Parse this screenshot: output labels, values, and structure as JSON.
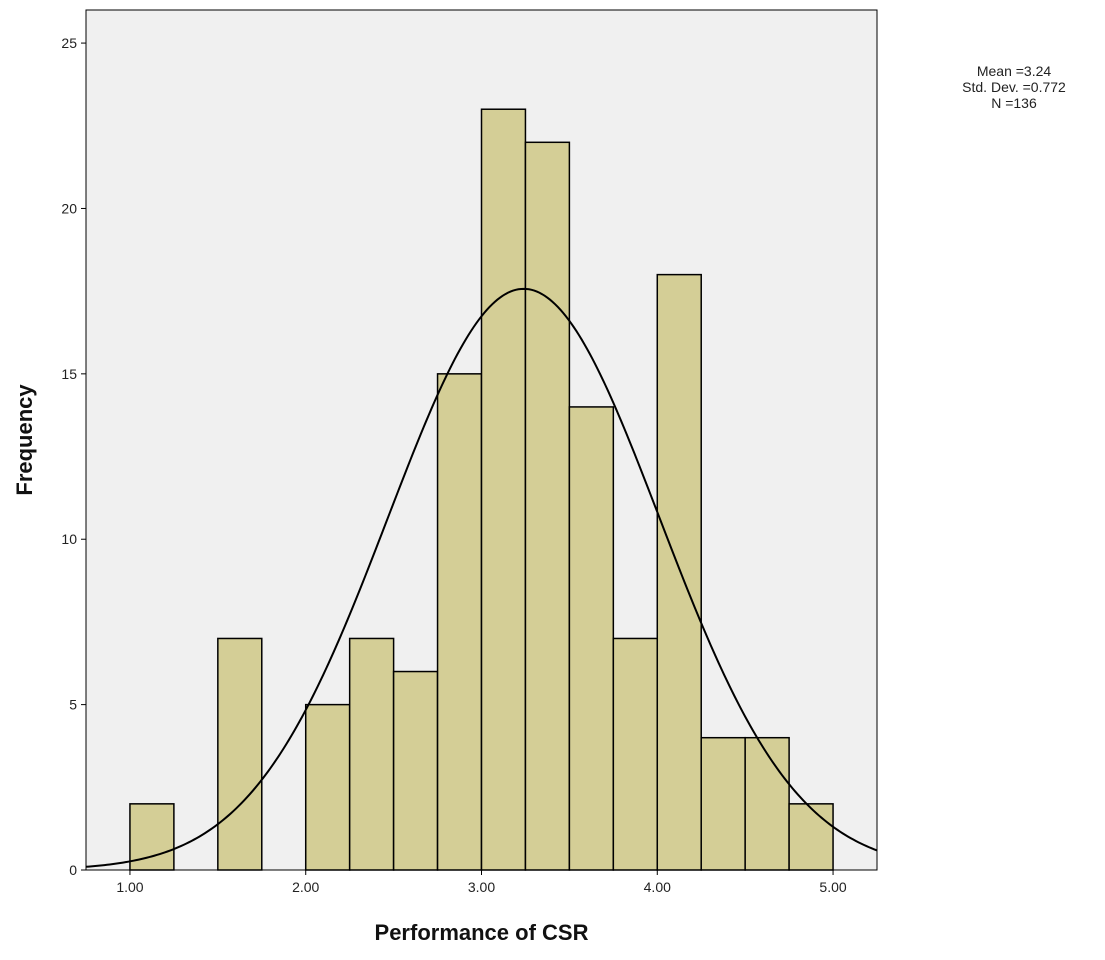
{
  "chart_data": {
    "type": "bar",
    "subtype": "histogram",
    "xlabel": "Performance of CSR",
    "ylabel": "Frequency",
    "xlim": [
      0.75,
      5.25
    ],
    "ylim": [
      0,
      26
    ],
    "bin_width": 0.25,
    "bins": [
      {
        "start": 1.0,
        "end": 1.25,
        "count": 2
      },
      {
        "start": 1.5,
        "end": 1.75,
        "count": 7
      },
      {
        "start": 2.0,
        "end": 2.25,
        "count": 5
      },
      {
        "start": 2.25,
        "end": 2.5,
        "count": 7
      },
      {
        "start": 2.5,
        "end": 2.75,
        "count": 6
      },
      {
        "start": 2.75,
        "end": 3.0,
        "count": 15
      },
      {
        "start": 3.0,
        "end": 3.25,
        "count": 23
      },
      {
        "start": 3.25,
        "end": 3.5,
        "count": 22
      },
      {
        "start": 3.5,
        "end": 3.75,
        "count": 14
      },
      {
        "start": 3.75,
        "end": 4.0,
        "count": 7
      },
      {
        "start": 4.0,
        "end": 4.25,
        "count": 18
      },
      {
        "start": 4.25,
        "end": 4.5,
        "count": 4
      },
      {
        "start": 4.5,
        "end": 4.75,
        "count": 4
      },
      {
        "start": 4.75,
        "end": 5.0,
        "count": 2
      }
    ],
    "x_ticks": [
      {
        "value": 1.0,
        "label": "1.00"
      },
      {
        "value": 2.0,
        "label": "2.00"
      },
      {
        "value": 3.0,
        "label": "3.00"
      },
      {
        "value": 4.0,
        "label": "4.00"
      },
      {
        "value": 5.0,
        "label": "5.00"
      }
    ],
    "y_ticks": [
      {
        "value": 0,
        "label": "0"
      },
      {
        "value": 5,
        "label": "5"
      },
      {
        "value": 10,
        "label": "10"
      },
      {
        "value": 15,
        "label": "15"
      },
      {
        "value": 20,
        "label": "20"
      },
      {
        "value": 25,
        "label": "25"
      }
    ],
    "normal_curve": {
      "mean": 3.24,
      "std_dev": 0.772,
      "n": 136
    },
    "stats_text": [
      "Mean =3.24",
      "Std. Dev. =0.772",
      "N =136"
    ],
    "colors": {
      "plot_background": "#f0f0f0",
      "bar_fill": "#d4ce96",
      "bar_stroke": "#000000",
      "curve": "#000000"
    },
    "grid": false
  }
}
